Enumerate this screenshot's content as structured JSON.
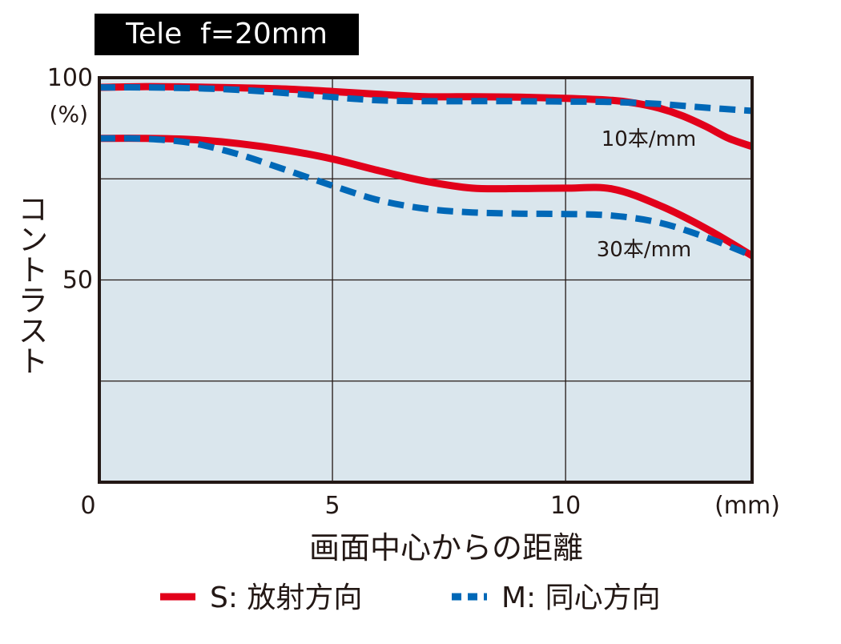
{
  "chart_data": {
    "type": "line",
    "title": "Tele  f=20mm",
    "xlabel": "画面中心からの距離",
    "xunit": "(mm)",
    "ylabel": "コントラスト",
    "yunit": "(%)",
    "xlim": [
      0,
      14
    ],
    "ylim": [
      0,
      100
    ],
    "xticks": [
      0,
      5,
      10
    ],
    "yticks": [
      50,
      100
    ],
    "x_gridlines": [
      5,
      10
    ],
    "y_gridlines": [
      25,
      50,
      75
    ],
    "grid": true,
    "legend_position": "bottom",
    "series": [
      {
        "name": "S: 放射方向",
        "group": "10本/mm",
        "color": "#e2001a",
        "style": "solid",
        "x": [
          0,
          1,
          2,
          3,
          4,
          5,
          6,
          7,
          8,
          9,
          10,
          11,
          11.5,
          12,
          12.5,
          13,
          13.5,
          14
        ],
        "y": [
          97.6,
          97.8,
          97.7,
          97.5,
          97.2,
          96.6,
          95.9,
          95.3,
          95.3,
          95.2,
          94.9,
          94.4,
          93.7,
          92.5,
          90.6,
          88.0,
          85.0,
          83.0
        ]
      },
      {
        "name": "M: 同心方向",
        "group": "10本/mm",
        "color": "#0068b7",
        "style": "dashed",
        "x": [
          0,
          1,
          2,
          3,
          4,
          5,
          6,
          7,
          8,
          9,
          10,
          11,
          12,
          13,
          14
        ],
        "y": [
          97.6,
          97.6,
          97.4,
          97.0,
          96.2,
          95.2,
          94.4,
          94.2,
          94.2,
          94.2,
          94.1,
          94.0,
          93.5,
          92.6,
          91.8
        ]
      },
      {
        "name": "S: 放射方向",
        "group": "30本/mm",
        "color": "#e2001a",
        "style": "solid",
        "x": [
          0,
          1,
          2,
          3,
          4,
          5,
          6,
          7,
          8,
          9,
          10,
          11,
          12,
          13,
          14
        ],
        "y": [
          85.0,
          85.0,
          84.7,
          83.7,
          82.1,
          79.9,
          77.0,
          74.4,
          72.7,
          72.6,
          72.7,
          72.5,
          68.5,
          62.8,
          56.0
        ]
      },
      {
        "name": "M: 同心方向",
        "group": "30本/mm",
        "color": "#0068b7",
        "style": "dashed",
        "x": [
          0,
          1,
          2,
          3,
          4,
          5,
          6,
          7,
          8,
          9,
          10,
          11,
          12,
          13,
          14
        ],
        "y": [
          85.0,
          84.9,
          83.8,
          81.0,
          77.2,
          73.3,
          69.7,
          67.6,
          66.7,
          66.4,
          66.3,
          65.9,
          64.2,
          60.6,
          56.0
        ]
      }
    ],
    "annotations": [
      {
        "text": "10本/mm"
      },
      {
        "text": "30本/mm"
      }
    ],
    "legend": [
      {
        "label": "S: 放射方向",
        "color": "#e2001a",
        "style": "solid"
      },
      {
        "label": "M: 同心方向",
        "color": "#0068b7",
        "style": "dashed"
      }
    ],
    "colors": {
      "plot_background": "#dae6ed",
      "frame": "#231815",
      "grid": "#231815"
    }
  }
}
